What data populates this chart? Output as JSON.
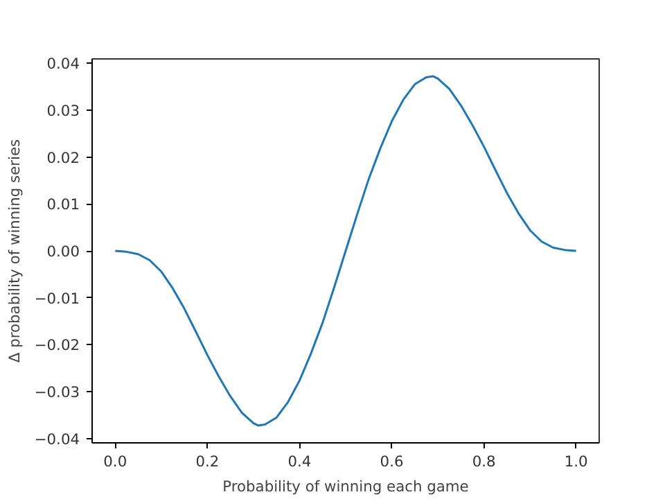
{
  "chart_data": {
    "type": "line",
    "xlabel": "Probability of winning each game",
    "ylabel": "Δ probability of winning series",
    "x": [
      0,
      0.025,
      0.05,
      0.075,
      0.1,
      0.125,
      0.15,
      0.175,
      0.2,
      0.225,
      0.25,
      0.275,
      0.3,
      0.31,
      0.325,
      0.35,
      0.375,
      0.4,
      0.425,
      0.45,
      0.475,
      0.5,
      0.525,
      0.55,
      0.575,
      0.6,
      0.625,
      0.65,
      0.675,
      0.69,
      0.7,
      0.725,
      0.75,
      0.775,
      0.8,
      0.825,
      0.85,
      0.875,
      0.9,
      0.925,
      0.95,
      0.975,
      1
    ],
    "series": [
      {
        "color": "#1f77b4",
        "values": [
          0,
          -0.0002,
          -0.0007,
          -0.002,
          -0.0044,
          -0.008,
          -0.0123,
          -0.0172,
          -0.0222,
          -0.0268,
          -0.031,
          -0.0345,
          -0.0367,
          -0.0372,
          -0.037,
          -0.0355,
          -0.0322,
          -0.0276,
          -0.0218,
          -0.0153,
          -0.0078,
          0,
          0.0078,
          0.0153,
          0.0218,
          0.0276,
          0.0322,
          0.0355,
          0.037,
          0.0372,
          0.0367,
          0.0345,
          0.031,
          0.0268,
          0.0222,
          0.0172,
          0.0123,
          0.008,
          0.0044,
          0.002,
          0.0007,
          0.0002,
          0
        ]
      }
    ],
    "xlim": [
      -0.05,
      1.05
    ],
    "ylim": [
      -0.0409,
      0.0409
    ],
    "xticks": [
      {
        "value": 0,
        "label": "0.0"
      },
      {
        "value": 0.2,
        "label": "0.2"
      },
      {
        "value": 0.4,
        "label": "0.4"
      },
      {
        "value": 0.6,
        "label": "0.6"
      },
      {
        "value": 0.8,
        "label": "0.8"
      },
      {
        "value": 1,
        "label": "1.0"
      }
    ],
    "yticks": [
      {
        "value": -0.04,
        "label": "−0.04"
      },
      {
        "value": -0.03,
        "label": "−0.03"
      },
      {
        "value": -0.02,
        "label": "−0.02"
      },
      {
        "value": -0.01,
        "label": "−0.01"
      },
      {
        "value": 0,
        "label": "0.00"
      },
      {
        "value": 0.01,
        "label": "0.01"
      },
      {
        "value": 0.02,
        "label": "0.02"
      },
      {
        "value": 0.03,
        "label": "0.03"
      },
      {
        "value": 0.04,
        "label": "0.04"
      }
    ],
    "grid": false
  }
}
